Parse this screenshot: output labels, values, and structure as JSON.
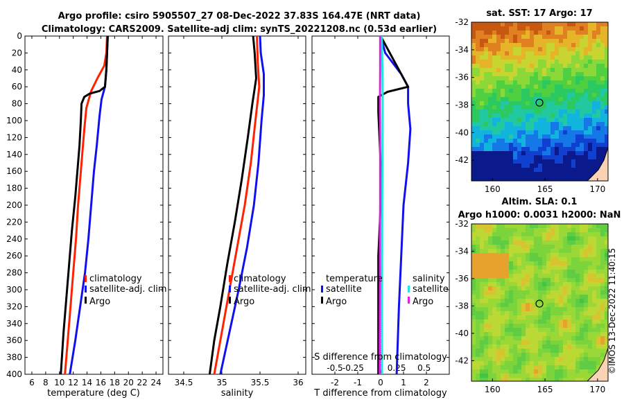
{
  "title_line1": "Argo profile: csiro 5905507_27 08-Dec-2022 37.83S 164.47E (NRT data)",
  "title_line2": "Climatology: CARS2009. Satellite-adj clim: synTS_20221208.nc (0.53d earlier)",
  "watermark": "©IMOS 13-Dec-2022 11:40:15",
  "colors": {
    "clim": "#ff2200",
    "sat": "#1010ee",
    "argo": "#000000",
    "sal_sat": "#22e4e4",
    "sal_argo": "#e81ee8"
  },
  "chart_data": [
    {
      "type": "line",
      "name": "temperature-profile",
      "xlabel": "temperature (deg C)",
      "xlim": [
        5,
        25
      ],
      "xticks": [
        6,
        8,
        10,
        12,
        14,
        16,
        18,
        20,
        22,
        24
      ],
      "ylim": [
        0,
        400
      ],
      "yticks": [
        0,
        20,
        40,
        60,
        80,
        100,
        120,
        140,
        160,
        180,
        200,
        220,
        240,
        260,
        280,
        300,
        320,
        340,
        360,
        380,
        400
      ],
      "legend": [
        "climatology",
        "satellite-adj. clim",
        "Argo"
      ],
      "series": [
        {
          "name": "climatology",
          "color_key": "clim",
          "points": [
            [
              16.9,
              0
            ],
            [
              16.8,
              20
            ],
            [
              16.5,
              35
            ],
            [
              15.5,
              50
            ],
            [
              14.6,
              65
            ],
            [
              13.9,
              85
            ],
            [
              13.6,
              110
            ],
            [
              13.3,
              140
            ],
            [
              13.0,
              170
            ],
            [
              12.7,
              200
            ],
            [
              12.4,
              240
            ],
            [
              12.0,
              280
            ],
            [
              11.6,
              320
            ],
            [
              11.2,
              360
            ],
            [
              10.8,
              400
            ]
          ]
        },
        {
          "name": "satellite-adj. clim",
          "color_key": "sat",
          "points": [
            [
              17.0,
              0
            ],
            [
              16.9,
              20
            ],
            [
              16.8,
              40
            ],
            [
              16.6,
              60
            ],
            [
              16.1,
              75
            ],
            [
              15.8,
              95
            ],
            [
              15.4,
              130
            ],
            [
              15.0,
              160
            ],
            [
              14.6,
              200
            ],
            [
              14.2,
              240
            ],
            [
              13.7,
              280
            ],
            [
              13.0,
              320
            ],
            [
              12.3,
              360
            ],
            [
              11.5,
              400
            ]
          ]
        },
        {
          "name": "Argo",
          "color_key": "argo",
          "points": [
            [
              17.0,
              0
            ],
            [
              16.9,
              20
            ],
            [
              16.8,
              40
            ],
            [
              16.6,
              60
            ],
            [
              15.8,
              65
            ],
            [
              14.4,
              68
            ],
            [
              13.6,
              72
            ],
            [
              13.2,
              80
            ],
            [
              13.1,
              100
            ],
            [
              12.9,
              130
            ],
            [
              12.6,
              160
            ],
            [
              12.3,
              190
            ],
            [
              11.8,
              230
            ],
            [
              11.4,
              270
            ],
            [
              11.0,
              310
            ],
            [
              10.6,
              350
            ],
            [
              10.2,
              400
            ]
          ]
        }
      ]
    },
    {
      "type": "line",
      "name": "salinity-profile",
      "xlabel": "salinity",
      "xlim": [
        34.3,
        36.1
      ],
      "xticks": [
        34.5,
        35,
        35.5,
        36
      ],
      "ylim": [
        0,
        400
      ],
      "legend": [
        "climatology",
        "satellite-adj. clim",
        "Argo"
      ],
      "series": [
        {
          "name": "climatology",
          "color_key": "clim",
          "points": [
            [
              35.46,
              0
            ],
            [
              35.47,
              30
            ],
            [
              35.49,
              60
            ],
            [
              35.44,
              100
            ],
            [
              35.38,
              150
            ],
            [
              35.3,
              200
            ],
            [
              35.2,
              250
            ],
            [
              35.1,
              300
            ],
            [
              35.0,
              350
            ],
            [
              34.9,
              400
            ]
          ]
        },
        {
          "name": "satellite-adj. clim",
          "color_key": "sat",
          "points": [
            [
              35.5,
              0
            ],
            [
              35.51,
              20
            ],
            [
              35.55,
              45
            ],
            [
              35.55,
              70
            ],
            [
              35.52,
              100
            ],
            [
              35.48,
              150
            ],
            [
              35.42,
              200
            ],
            [
              35.33,
              250
            ],
            [
              35.22,
              300
            ],
            [
              35.1,
              350
            ],
            [
              34.98,
              400
            ]
          ]
        },
        {
          "name": "Argo",
          "color_key": "argo",
          "points": [
            [
              35.41,
              0
            ],
            [
              35.43,
              20
            ],
            [
              35.45,
              50
            ],
            [
              35.4,
              80
            ],
            [
              35.34,
              120
            ],
            [
              35.26,
              170
            ],
            [
              35.17,
              220
            ],
            [
              35.07,
              270
            ],
            [
              34.98,
              320
            ],
            [
              34.9,
              360
            ],
            [
              34.84,
              400
            ]
          ]
        }
      ]
    },
    {
      "type": "line",
      "name": "difference-profile",
      "xlabel": "T difference from climatology",
      "xlim": [
        -3,
        3
      ],
      "xticks": [
        -2,
        -1,
        0,
        1,
        2
      ],
      "top_label": "S difference from climatology",
      "top_ticks": [
        "-0.5",
        "-0.25",
        "0",
        "0.25",
        "0.5"
      ],
      "ylim": [
        0,
        400
      ],
      "legend": [
        "temperature",
        "satellite",
        "Argo",
        "salinity",
        "satellite",
        "Argo"
      ],
      "series": [
        {
          "name": "temperature satellite",
          "color_key": "sat",
          "points": [
            [
              0.0,
              0
            ],
            [
              0.2,
              20
            ],
            [
              0.9,
              45
            ],
            [
              1.2,
              60
            ],
            [
              1.2,
              80
            ],
            [
              1.3,
              110
            ],
            [
              1.2,
              150
            ],
            [
              1.0,
              200
            ],
            [
              0.9,
              260
            ],
            [
              0.8,
              320
            ],
            [
              0.7,
              400
            ]
          ]
        },
        {
          "name": "temperature Argo",
          "color_key": "argo",
          "points": [
            [
              0.0,
              0
            ],
            [
              0.3,
              15
            ],
            [
              0.7,
              35
            ],
            [
              1.2,
              60
            ],
            [
              0.3,
              66
            ],
            [
              -0.1,
              72
            ],
            [
              -0.1,
              90
            ],
            [
              0,
              150
            ],
            [
              0,
              200
            ],
            [
              -0.1,
              260
            ],
            [
              -0.1,
              330
            ],
            [
              -0.1,
              400
            ]
          ]
        },
        {
          "name": "salinity satellite",
          "color_key": "sal_sat",
          "points": [
            [
              0.05,
              0
            ],
            [
              0.08,
              40
            ],
            [
              0.09,
              80
            ],
            [
              0.08,
              150
            ],
            [
              0.07,
              200
            ],
            [
              0.06,
              300
            ],
            [
              0.06,
              400
            ]
          ]
        },
        {
          "name": "salinity Argo",
          "color_key": "sal_argo",
          "points": [
            [
              -0.02,
              0
            ],
            [
              -0.02,
              40
            ],
            [
              -0.03,
              80
            ],
            [
              -0.02,
              120
            ],
            [
              -0.02,
              160
            ],
            [
              -0.02,
              200
            ],
            [
              -0.03,
              240
            ],
            [
              -0.03,
              300
            ],
            [
              -0.04,
              360
            ],
            [
              -0.04,
              400
            ]
          ]
        }
      ]
    },
    {
      "type": "heatmap",
      "name": "sst-map",
      "title": "sat. SST: 17 Argo: 17",
      "xlim": [
        158,
        171
      ],
      "ylim": [
        -43.5,
        -32
      ],
      "xticks": [
        160,
        165,
        170
      ],
      "yticks": [
        -32,
        -34,
        -36,
        -38,
        -40,
        -42
      ],
      "marker": [
        164.47,
        -37.83
      ]
    },
    {
      "type": "heatmap",
      "name": "sla-map",
      "title1": "Altim. SLA: 0.1",
      "title2": "Argo h1000: 0.0031 h2000: NaN",
      "xlim": [
        158,
        171
      ],
      "ylim": [
        -43.5,
        -32
      ],
      "xticks": [
        160,
        165,
        170
      ],
      "yticks": [
        -32,
        -34,
        -36,
        -38,
        -40,
        -42
      ],
      "marker": [
        164.47,
        -37.83
      ]
    }
  ]
}
